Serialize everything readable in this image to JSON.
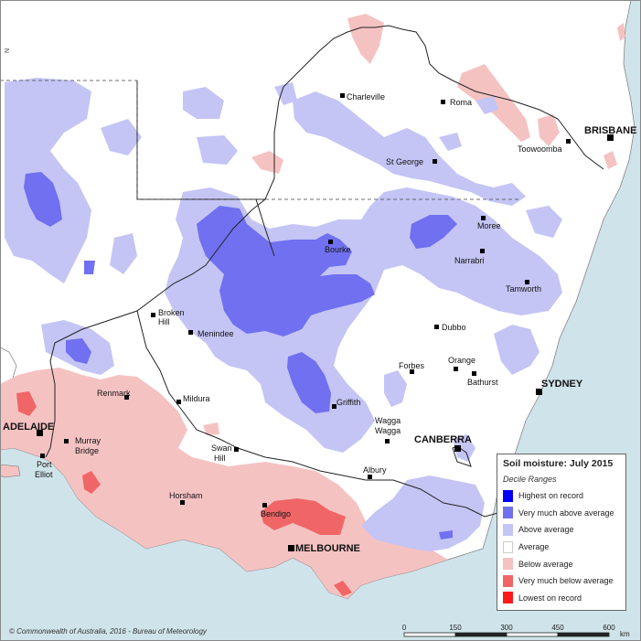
{
  "map": {
    "title": "Soil moisture: July 2015",
    "subtitle": "Decile Ranges",
    "legend": [
      {
        "label": "Highest on record",
        "color": "#0000ff"
      },
      {
        "label": "Very much above average",
        "color": "#7070f0"
      },
      {
        "label": "Above average",
        "color": "#c4c4f5"
      },
      {
        "label": "Average",
        "color": "#ffffff"
      },
      {
        "label": "Below average",
        "color": "#f5c2c2"
      },
      {
        "label": "Very much below average",
        "color": "#f06666"
      },
      {
        "label": "Lowest on record",
        "color": "#ff1a1a"
      }
    ],
    "copyright": "© Commonwealth of Australia, 2016 - Bureau of Meteorology",
    "scale": {
      "ticks": [
        "0",
        "150",
        "300",
        "450",
        "600"
      ],
      "unit": "km"
    },
    "north_marker": "N",
    "places": {
      "charleville": "Charleville",
      "roma": "Roma",
      "brisbane": "BRISBANE",
      "toowoomba": "Toowoomba",
      "st_george": "St George",
      "moree": "Moree",
      "narrabri": "Narrabri",
      "bourke": "Bourke",
      "tamworth": "Tamworth",
      "broken_hill_1": "Broken",
      "broken_hill_2": "Hill",
      "menindee": "Menindee",
      "dubbo": "Dubbo",
      "orange": "Orange",
      "bathurst": "Bathurst",
      "sydney": "SYDNEY",
      "forbes": "Forbes",
      "griffith": "Griffith",
      "renmark": "Renmark",
      "mildura": "Mildura",
      "adelaide": "ADELAIDE",
      "murray_bridge_1": "Murray",
      "murray_bridge_2": "Bridge",
      "port_elliot_1": "Port",
      "port_elliot_2": "Elliot",
      "wagga_1": "Wagga",
      "wagga_2": "Wagga",
      "canberra": "CANBERRA",
      "swan_hill_1": "Swan",
      "swan_hill_2": "Hill",
      "albury": "Albury",
      "horsham": "Horsham",
      "bendigo": "Bendigo",
      "melbourne": "MELBOURNE"
    }
  }
}
